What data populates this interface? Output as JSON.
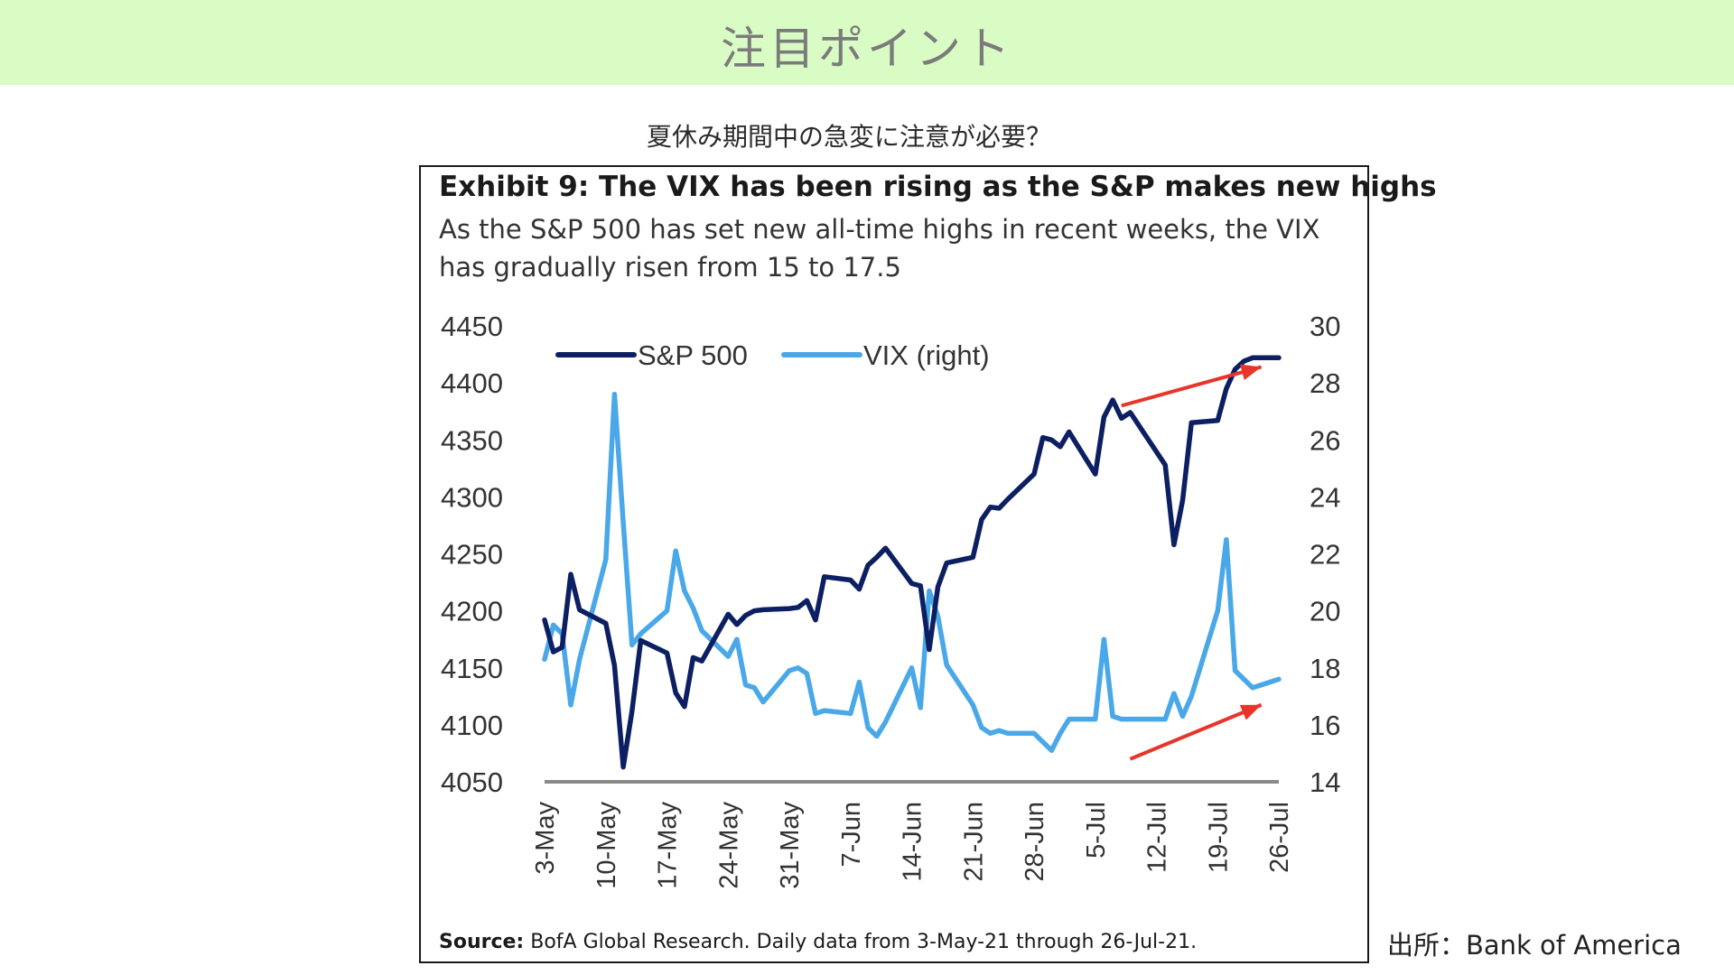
{
  "header": {
    "title": "注目ポイント"
  },
  "subtitle": "夏休み期間中の急変に注意が必要？",
  "attribution": "出所：Bank of America",
  "colors": {
    "header_bg": "#d9fbc4",
    "spx": "#0d1f63",
    "vix": "#4aa8e8",
    "arrow": "#e8352a"
  },
  "chart_data": {
    "type": "line",
    "title": "Exhibit 9: The VIX has been rising as the S&P makes new highs",
    "subtitle": "As the S&P 500 has set new all-time highs in recent weeks, the VIX has gradually risen from 15 to 17.5",
    "source_label": "Source:",
    "source_text": "BofA Global Research.  Daily data from 3-May-21 through 26-Jul-21.",
    "legend": [
      "S&P 500",
      "VIX (right)"
    ],
    "legend_position": "top-left",
    "x_tick_labels": [
      "3-May",
      "10-May",
      "17-May",
      "24-May",
      "31-May",
      "7-Jun",
      "14-Jun",
      "21-Jun",
      "28-Jun",
      "5-Jul",
      "12-Jul",
      "19-Jul",
      "26-Jul"
    ],
    "y_left": {
      "ticks": [
        4450,
        4400,
        4350,
        4300,
        4250,
        4200,
        4150,
        4100,
        4050
      ],
      "range": [
        4050,
        4450
      ]
    },
    "y_right": {
      "ticks": [
        30,
        28,
        26,
        24,
        22,
        20,
        18,
        16,
        14
      ],
      "range": [
        14,
        30
      ]
    },
    "series": [
      {
        "name": "S&P 500",
        "axis": "left",
        "x": [
          0,
          1,
          2,
          3,
          4,
          7,
          8,
          9,
          10,
          11,
          14,
          15,
          16,
          17,
          18,
          21,
          22,
          23,
          24,
          25,
          28,
          29,
          30,
          31,
          32,
          35,
          36,
          37,
          38,
          39,
          42,
          43,
          44,
          45,
          46,
          49,
          50,
          51,
          52,
          53,
          56,
          57,
          58,
          59,
          60,
          63,
          64,
          65,
          66,
          67,
          71,
          72,
          73,
          74,
          77,
          78,
          79,
          80,
          81,
          84
        ],
        "values": [
          4192,
          4164,
          4168,
          4232,
          4201,
          4189,
          4152,
          4063,
          4112,
          4174,
          4163,
          4128,
          4116,
          4159,
          4156,
          4197,
          4188,
          4196,
          4200,
          4201,
          4202,
          4203,
          4209,
          4192,
          4230,
          4227,
          4219,
          4240,
          4247,
          4255,
          4224,
          4222,
          4166,
          4221,
          4242,
          4247,
          4280,
          4291,
          4290,
          4298,
          4320,
          4352,
          4350,
          4344,
          4357,
          4320,
          4370,
          4385,
          4369,
          4374,
          4328,
          4258,
          4297,
          4365,
          4367,
          4395,
          4412,
          4419,
          4422,
          4422
        ]
      },
      {
        "name": "VIX (right)",
        "axis": "right",
        "x": [
          0,
          1,
          2,
          3,
          4,
          7,
          8,
          9,
          10,
          11,
          14,
          15,
          16,
          17,
          18,
          21,
          22,
          23,
          24,
          25,
          28,
          29,
          30,
          31,
          32,
          35,
          36,
          37,
          38,
          39,
          42,
          43,
          44,
          45,
          46,
          49,
          50,
          51,
          52,
          53,
          56,
          57,
          58,
          59,
          60,
          63,
          64,
          65,
          66,
          67,
          71,
          72,
          73,
          74,
          77,
          78,
          79,
          80,
          81,
          84
        ],
        "values": [
          18.3,
          19.5,
          19.2,
          16.7,
          18.3,
          21.8,
          27.6,
          23.1,
          18.8,
          19.2,
          20.0,
          22.1,
          20.7,
          20.1,
          19.3,
          18.4,
          19.0,
          17.4,
          17.3,
          16.8,
          17.9,
          18.0,
          17.8,
          16.4,
          16.5,
          16.4,
          17.5,
          15.9,
          15.6,
          16.1,
          18.0,
          16.6,
          20.7,
          19.8,
          18.1,
          16.7,
          15.9,
          15.7,
          15.8,
          15.7,
          15.7,
          15.4,
          15.1,
          15.7,
          16.2,
          16.2,
          19.0,
          16.3,
          16.2,
          16.2,
          16.2,
          17.1,
          16.3,
          17.0,
          20.0,
          22.5,
          17.9,
          17.6,
          17.3,
          17.6
        ]
      }
    ],
    "annotations": [
      {
        "type": "arrow",
        "label": "upward trend S&P 500",
        "from": {
          "x": 66,
          "y": 4380
        },
        "to": {
          "x": 82,
          "y": 4414
        }
      },
      {
        "type": "arrow",
        "label": "upward trend VIX",
        "from": {
          "x": 67,
          "y": 14.8
        },
        "to": {
          "x": 82,
          "y": 16.7
        }
      }
    ]
  }
}
